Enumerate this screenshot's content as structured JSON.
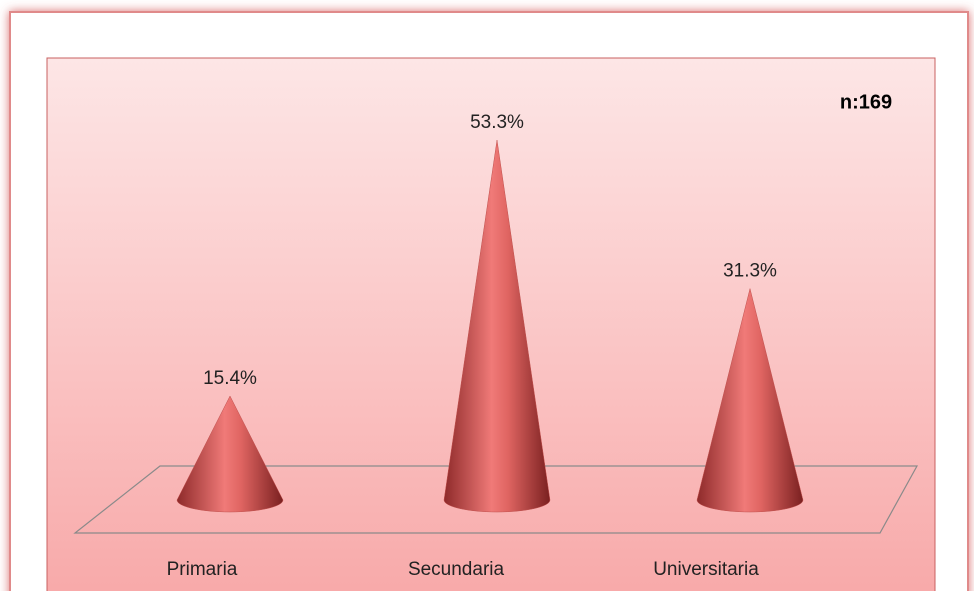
{
  "chart_data": {
    "type": "cone",
    "annotation": "n:169",
    "categories": [
      "Primaria",
      "Secundaria",
      "Universitaria"
    ],
    "values": [
      15.4,
      53.3,
      31.3
    ],
    "value_labels": [
      "15.4%",
      "53.3%",
      "31.3%"
    ],
    "color": "#c0504d"
  }
}
